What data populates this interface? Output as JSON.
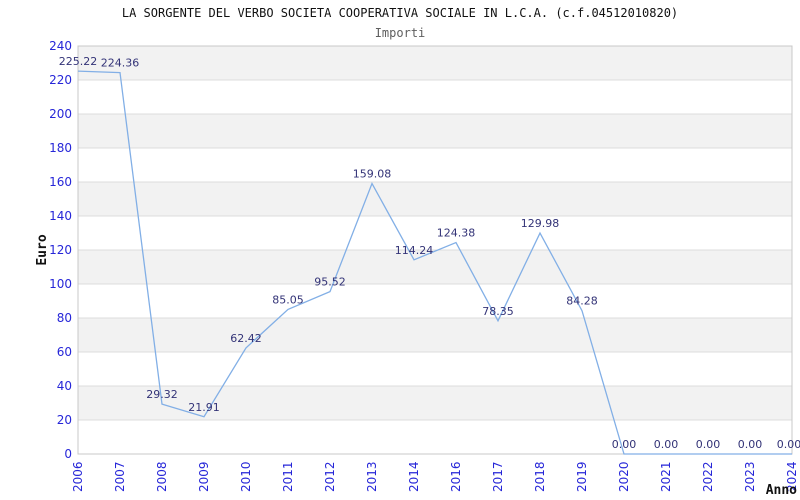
{
  "chart_data": {
    "type": "line",
    "title": "LA SORGENTE DEL VERBO SOCIETA COOPERATIVA SOCIALE IN L.C.A. (c.f.04512010820)",
    "subtitle": "Importi",
    "xlabel": "Anno",
    "ylabel": "Euro",
    "categories": [
      "2006",
      "2007",
      "2008",
      "2009",
      "2010",
      "2011",
      "2012",
      "2013",
      "2014",
      "2016",
      "2017",
      "2018",
      "2019",
      "2020",
      "2021",
      "2022",
      "2023",
      "2024"
    ],
    "values": [
      225.22,
      224.36,
      29.32,
      21.91,
      62.42,
      85.05,
      95.52,
      159.08,
      114.24,
      124.38,
      78.35,
      129.98,
      84.28,
      0.0,
      0.0,
      0.0,
      0.0,
      0.0
    ],
    "value_labels": [
      "225.22",
      "224.36",
      "29.32",
      "21.91",
      "62.42",
      "85.05",
      "95.52",
      "159.08",
      "114.24",
      "124.38",
      "78.35",
      "129.98",
      "84.28",
      "0.00",
      "0.00",
      "0.00",
      "0.00",
      "0.00"
    ],
    "ylim": [
      0,
      240
    ],
    "ytick_step": 20,
    "ytick_labels": [
      "0",
      "20",
      "40",
      "60",
      "80",
      "100",
      "120",
      "140",
      "160",
      "180",
      "200",
      "220",
      "240"
    ],
    "grid": true,
    "alternating_row_bands": true,
    "legend_position": "none",
    "colors": {
      "line": "#82afe6",
      "tick_label": "#2626d8",
      "value_label": "#333377",
      "band": "#f2f2f2",
      "gridline": "#dcdcdc",
      "plot_border": "#c8c8c8",
      "plot_background": "#ffffff"
    }
  }
}
